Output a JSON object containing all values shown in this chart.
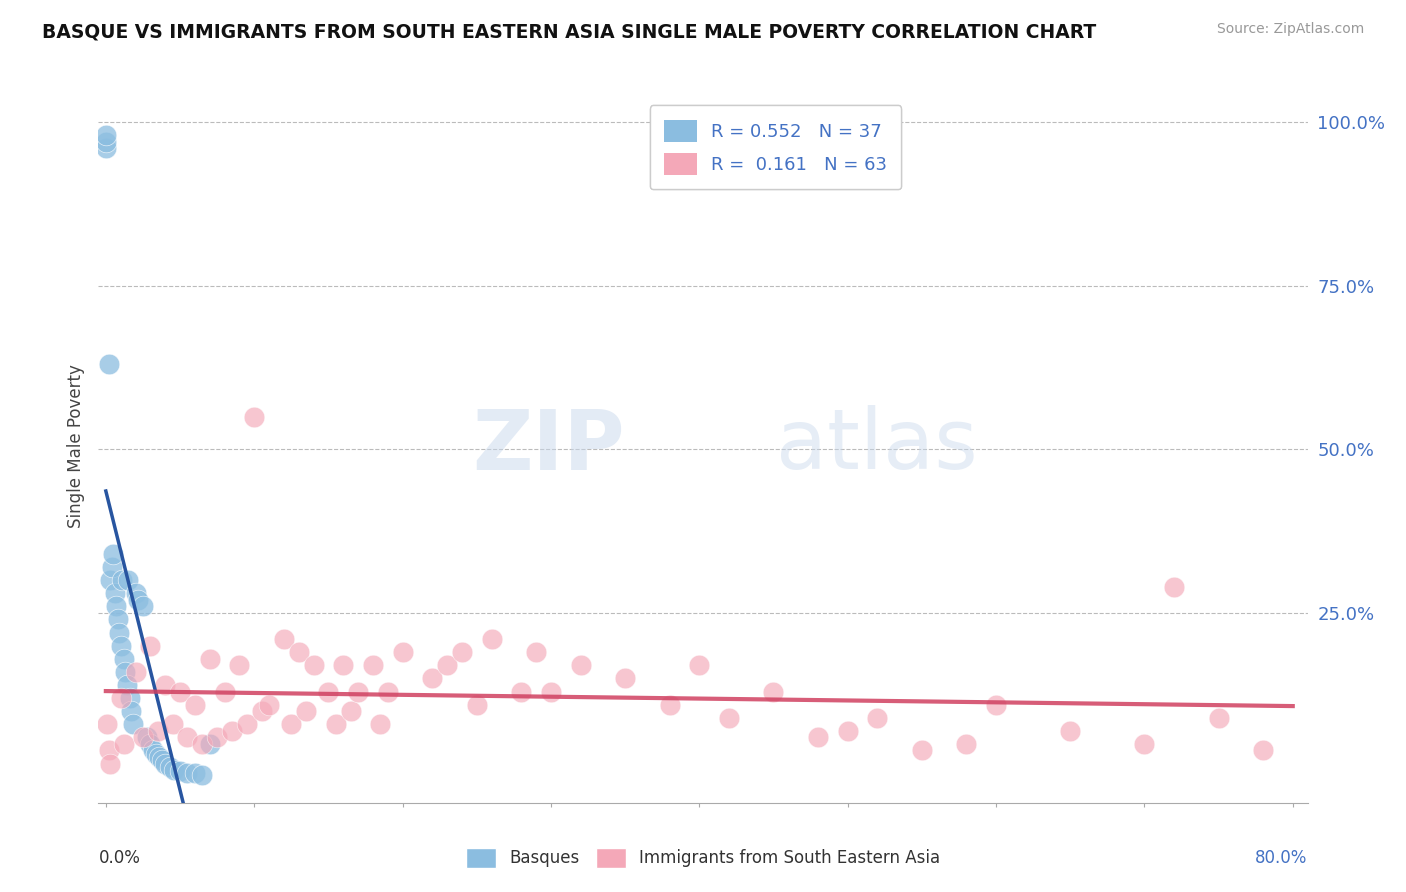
{
  "title": "BASQUE VS IMMIGRANTS FROM SOUTH EASTERN ASIA SINGLE MALE POVERTY CORRELATION CHART",
  "source": "Source: ZipAtlas.com",
  "ylabel": "Single Male Poverty",
  "blue_color": "#8BBDE0",
  "pink_color": "#F4A8B8",
  "blue_line_color": "#2855A0",
  "pink_line_color": "#D04060",
  "blue_r": "R = 0.552",
  "blue_n": "N = 37",
  "pink_r": "R =  0.161",
  "pink_n": "N = 63",
  "legend_label_blue": "Basques",
  "legend_label_pink": "Immigrants from South Eastern Asia",
  "watermark_zip": "ZIP",
  "watermark_atlas": "atlas",
  "xmin": 0.0,
  "xmax": 0.8,
  "ymin": 0.0,
  "ymax": 1.0,
  "yticks": [
    0.0,
    0.25,
    0.5,
    0.75,
    1.0
  ],
  "ytick_labels": [
    "",
    "25.0%",
    "50.0%",
    "75.0%",
    "100.0%"
  ],
  "xtick_label_left": "0.0%",
  "xtick_label_right": "80.0%",
  "blue_scatter_x": [
    0.0,
    0.0,
    0.0,
    0.002,
    0.003,
    0.004,
    0.005,
    0.006,
    0.007,
    0.008,
    0.009,
    0.01,
    0.011,
    0.012,
    0.013,
    0.014,
    0.015,
    0.016,
    0.017,
    0.018,
    0.02,
    0.022,
    0.025,
    0.028,
    0.03,
    0.032,
    0.034,
    0.036,
    0.038,
    0.04,
    0.043,
    0.046,
    0.05,
    0.055,
    0.06,
    0.065,
    0.07
  ],
  "blue_scatter_y": [
    0.96,
    0.97,
    0.98,
    0.63,
    0.3,
    0.32,
    0.34,
    0.28,
    0.26,
    0.24,
    0.22,
    0.2,
    0.3,
    0.18,
    0.16,
    0.14,
    0.3,
    0.12,
    0.1,
    0.08,
    0.28,
    0.27,
    0.26,
    0.06,
    0.05,
    0.04,
    0.035,
    0.03,
    0.025,
    0.02,
    0.015,
    0.01,
    0.008,
    0.006,
    0.005,
    0.003,
    0.05
  ],
  "pink_scatter_x": [
    0.001,
    0.002,
    0.003,
    0.01,
    0.012,
    0.02,
    0.025,
    0.03,
    0.035,
    0.04,
    0.045,
    0.05,
    0.055,
    0.06,
    0.065,
    0.07,
    0.075,
    0.08,
    0.085,
    0.09,
    0.095,
    0.1,
    0.105,
    0.11,
    0.12,
    0.125,
    0.13,
    0.135,
    0.14,
    0.15,
    0.155,
    0.16,
    0.165,
    0.17,
    0.18,
    0.185,
    0.19,
    0.2,
    0.22,
    0.23,
    0.24,
    0.25,
    0.26,
    0.28,
    0.29,
    0.3,
    0.32,
    0.35,
    0.38,
    0.4,
    0.42,
    0.45,
    0.48,
    0.5,
    0.52,
    0.55,
    0.58,
    0.6,
    0.65,
    0.7,
    0.72,
    0.75,
    0.78
  ],
  "pink_scatter_y": [
    0.08,
    0.04,
    0.02,
    0.12,
    0.05,
    0.16,
    0.06,
    0.2,
    0.07,
    0.14,
    0.08,
    0.13,
    0.06,
    0.11,
    0.05,
    0.18,
    0.06,
    0.13,
    0.07,
    0.17,
    0.08,
    0.55,
    0.1,
    0.11,
    0.21,
    0.08,
    0.19,
    0.1,
    0.17,
    0.13,
    0.08,
    0.17,
    0.1,
    0.13,
    0.17,
    0.08,
    0.13,
    0.19,
    0.15,
    0.17,
    0.19,
    0.11,
    0.21,
    0.13,
    0.19,
    0.13,
    0.17,
    0.15,
    0.11,
    0.17,
    0.09,
    0.13,
    0.06,
    0.07,
    0.09,
    0.04,
    0.05,
    0.11,
    0.07,
    0.05,
    0.29,
    0.09,
    0.04
  ]
}
